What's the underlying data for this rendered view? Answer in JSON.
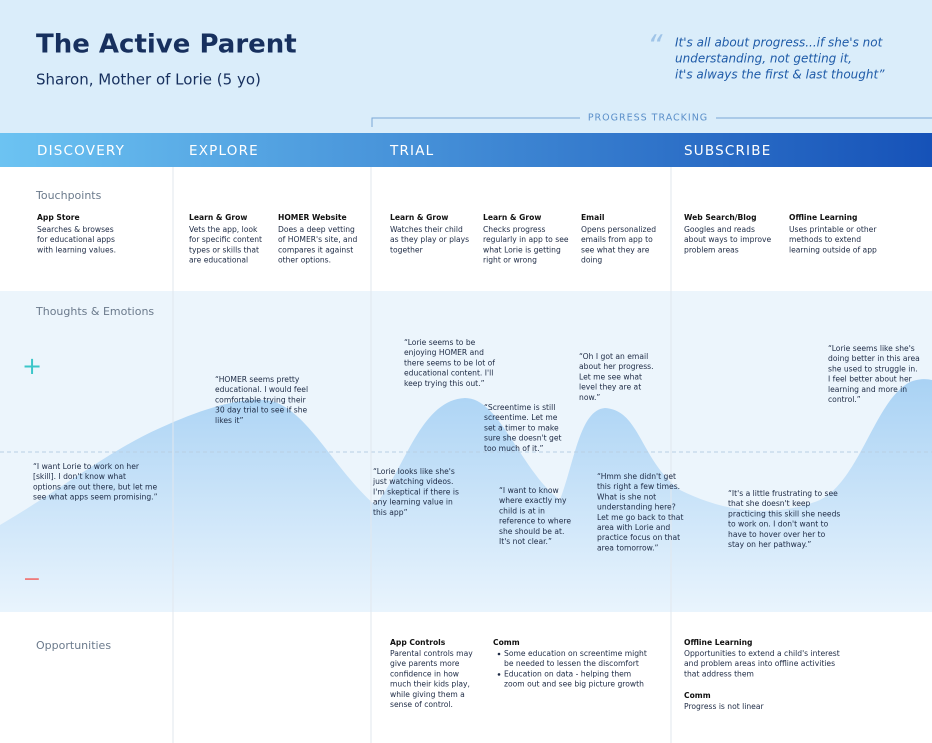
{
  "header": {
    "title": "The Active Parent",
    "subtitle": "Sharon, Mother of Lorie (5 yo)",
    "quote_mark": "“",
    "quote": [
      "It's all about progress...if she's not",
      "understanding, not getting it,",
      "it's always the first & last thought”"
    ]
  },
  "progress_label": "PROGRESS TRACKING",
  "phases": [
    "DISCOVERY",
    "EXPLORE",
    "TRIAL",
    "SUBSCRIBE"
  ],
  "touchpoints": {
    "label": "Touchpoints",
    "items": [
      {
        "title": "App Store",
        "lines": [
          "Searches & browses",
          "for educational apps",
          "with learning values."
        ]
      },
      {
        "title": "Learn & Grow",
        "lines": [
          "Vets the app, look",
          "for specific content",
          "types or skills that",
          "are educational"
        ]
      },
      {
        "title": "HOMER Website",
        "lines": [
          "Does a deep vetting",
          "of HOMER's site, and",
          "compares it against",
          "other options."
        ]
      },
      {
        "title": "Learn & Grow",
        "lines": [
          "Watches their child",
          "as they play or plays",
          "together"
        ]
      },
      {
        "title": "Learn & Grow",
        "lines": [
          "Checks progress",
          "regularly in app to see",
          "what Lorie is getting",
          "right or wrong"
        ]
      },
      {
        "title": "Email",
        "lines": [
          "Opens personalized",
          "emails from app to",
          "see what they are",
          "doing"
        ]
      },
      {
        "title": "Web Search/Blog",
        "lines": [
          "Googles and reads",
          "about ways to improve",
          "problem areas"
        ]
      },
      {
        "title": "Offline Learning",
        "lines": [
          "Uses printable or other",
          "methods to extend",
          "learning outside of app"
        ]
      }
    ]
  },
  "thoughts": {
    "label": "Thoughts & Emotions",
    "plus": "+",
    "minus": "−",
    "items": [
      {
        "lines": [
          "“I want Lorie to work on her",
          "[skill]. I don't know what",
          "options are out there, but let me",
          "see what apps seem promising.”"
        ]
      },
      {
        "lines": [
          "“HOMER seems pretty",
          "educational. I would feel",
          "comfortable trying their",
          "30 day trial to see if she",
          "likes it”"
        ]
      },
      {
        "lines": [
          "“Lorie seems to be",
          "enjoying HOMER and",
          "there seems to be lot of",
          "educational content. I'll",
          "keep trying this out.”"
        ]
      },
      {
        "lines": [
          "“Lorie looks like she's",
          "just watching videos.",
          "I'm skeptical if there is",
          "any learning value in",
          "this app”"
        ]
      },
      {
        "lines": [
          "“Screentime is still",
          "screentime. Let me",
          "set a timer to make",
          "sure she doesn't get",
          "too much of it.”"
        ]
      },
      {
        "lines": [
          "“I want to know",
          "where exactly my",
          "child is at in",
          "reference to where",
          "she should be at.",
          "It's not clear.”"
        ]
      },
      {
        "lines": [
          "“Oh I got an email",
          "about her progress.",
          "Let me see what",
          "level they are at",
          "now.”"
        ]
      },
      {
        "lines": [
          "“Hmm she didn't get",
          "this right a few times.",
          "What is she not",
          "understanding here?",
          "Let me go back to that",
          "area with Lorie and",
          "practice focus on that",
          "area tomorrow.”"
        ]
      },
      {
        "lines": [
          "“It's a little frustrating to see",
          "that she doesn't keep",
          "practicing this skill she needs",
          "to work on. I don't want to",
          "have to hover over her to",
          "stay on her pathway.”"
        ]
      },
      {
        "lines": [
          "“Lorie seems like she's",
          "doing better in this area",
          "she used to struggle in.",
          "I feel better about her",
          "learning and more in",
          "control.”"
        ]
      }
    ]
  },
  "opportunities": {
    "label": "Opportunities",
    "items": [
      {
        "title": "App Controls",
        "lines": [
          "Parental controls may",
          "give parents more",
          "confidence in how",
          "much their kids play,",
          "while giving them a",
          "sense of control."
        ]
      },
      {
        "title": "Comm",
        "bullets": [
          [
            "Some education on screentime might",
            "be needed to lessen the discomfort"
          ],
          [
            "Education on data - helping them",
            "zoom out and see big picture growth"
          ]
        ]
      },
      {
        "title": "Offline Learning",
        "lines": [
          "Opportunities to extend a child's interest",
          "and problem areas into offline activities",
          "that address them"
        ]
      },
      {
        "title": "Comm",
        "lines": [
          "Progress is not linear"
        ]
      }
    ]
  }
}
